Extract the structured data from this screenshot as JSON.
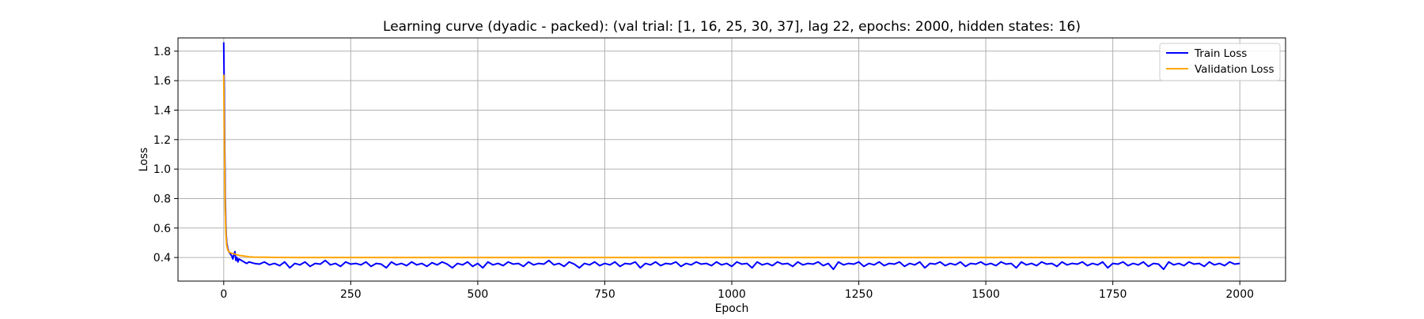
{
  "chart_data": {
    "type": "line",
    "title": "Learning curve (dyadic - packed): (val trial: [1, 16, 25, 30, 37], lag 22, epochs: 2000, hidden states: 16)",
    "xlabel": "Epoch",
    "ylabel": "Loss",
    "xlim": [
      -90,
      2090
    ],
    "ylim": [
      0.24,
      1.89
    ],
    "xticks": [
      0,
      250,
      500,
      750,
      1000,
      1250,
      1500,
      1750,
      2000
    ],
    "yticks": [
      0.4,
      0.6,
      0.8,
      1.0,
      1.2,
      1.4,
      1.6,
      1.8
    ],
    "xtick_labels": [
      "0",
      "250",
      "500",
      "750",
      "1000",
      "1250",
      "1500",
      "1750",
      "2000"
    ],
    "ytick_labels": [
      "0.4",
      "0.6",
      "0.8",
      "1.0",
      "1.2",
      "1.4",
      "1.6",
      "1.8"
    ],
    "grid": true,
    "legend_position": "top-right",
    "series": [
      {
        "name": "Train Loss",
        "color": "#0000ff",
        "x": [
          0,
          1,
          2,
          3,
          4,
          5,
          6,
          8,
          10,
          12,
          14,
          16,
          18,
          20,
          22,
          24,
          26,
          28,
          30,
          35,
          40,
          45,
          50,
          60,
          70,
          80,
          90,
          100,
          110,
          120,
          130,
          140,
          150,
          160,
          170,
          180,
          190,
          200,
          210,
          220,
          230,
          240,
          250,
          260,
          270,
          280,
          290,
          300,
          310,
          320,
          330,
          340,
          350,
          360,
          370,
          380,
          390,
          400,
          410,
          420,
          430,
          440,
          450,
          460,
          470,
          480,
          490,
          500,
          510,
          520,
          530,
          540,
          550,
          560,
          570,
          580,
          590,
          600,
          610,
          620,
          630,
          640,
          650,
          660,
          670,
          680,
          690,
          700,
          710,
          720,
          730,
          740,
          750,
          760,
          770,
          780,
          790,
          800,
          810,
          820,
          830,
          840,
          850,
          860,
          870,
          880,
          890,
          900,
          910,
          920,
          930,
          940,
          950,
          960,
          970,
          980,
          990,
          1000,
          1010,
          1020,
          1030,
          1040,
          1050,
          1060,
          1070,
          1080,
          1090,
          1100,
          1110,
          1120,
          1130,
          1140,
          1150,
          1160,
          1170,
          1180,
          1190,
          1200,
          1210,
          1220,
          1230,
          1240,
          1250,
          1260,
          1270,
          1280,
          1290,
          1300,
          1310,
          1320,
          1330,
          1340,
          1350,
          1360,
          1370,
          1380,
          1390,
          1400,
          1410,
          1420,
          1430,
          1440,
          1450,
          1460,
          1470,
          1480,
          1490,
          1500,
          1510,
          1520,
          1530,
          1540,
          1550,
          1560,
          1570,
          1580,
          1590,
          1600,
          1610,
          1620,
          1630,
          1640,
          1650,
          1660,
          1670,
          1680,
          1690,
          1700,
          1710,
          1720,
          1730,
          1740,
          1750,
          1760,
          1770,
          1780,
          1790,
          1800,
          1810,
          1820,
          1830,
          1840,
          1850,
          1860,
          1870,
          1880,
          1890,
          1900,
          1910,
          1920,
          1930,
          1940,
          1950,
          1960,
          1970,
          1980,
          1990,
          2000
        ],
        "y": [
          1.86,
          1.55,
          1.12,
          0.82,
          0.65,
          0.55,
          0.5,
          0.46,
          0.44,
          0.43,
          0.42,
          0.41,
          0.39,
          0.42,
          0.44,
          0.38,
          0.4,
          0.37,
          0.39,
          0.38,
          0.37,
          0.36,
          0.37,
          0.36,
          0.355,
          0.37,
          0.35,
          0.36,
          0.345,
          0.37,
          0.33,
          0.36,
          0.35,
          0.37,
          0.34,
          0.36,
          0.355,
          0.38,
          0.35,
          0.36,
          0.34,
          0.37,
          0.355,
          0.36,
          0.35,
          0.37,
          0.34,
          0.36,
          0.355,
          0.33,
          0.37,
          0.35,
          0.36,
          0.345,
          0.37,
          0.35,
          0.36,
          0.34,
          0.365,
          0.35,
          0.37,
          0.355,
          0.33,
          0.36,
          0.35,
          0.37,
          0.34,
          0.36,
          0.33,
          0.37,
          0.35,
          0.36,
          0.345,
          0.37,
          0.355,
          0.36,
          0.34,
          0.37,
          0.35,
          0.36,
          0.355,
          0.38,
          0.35,
          0.36,
          0.34,
          0.37,
          0.355,
          0.33,
          0.36,
          0.35,
          0.37,
          0.345,
          0.36,
          0.35,
          0.37,
          0.34,
          0.36,
          0.355,
          0.37,
          0.33,
          0.36,
          0.35,
          0.37,
          0.345,
          0.36,
          0.355,
          0.37,
          0.34,
          0.36,
          0.35,
          0.37,
          0.355,
          0.36,
          0.345,
          0.37,
          0.35,
          0.36,
          0.34,
          0.37,
          0.355,
          0.36,
          0.33,
          0.37,
          0.35,
          0.36,
          0.345,
          0.37,
          0.355,
          0.36,
          0.34,
          0.37,
          0.35,
          0.36,
          0.355,
          0.37,
          0.345,
          0.36,
          0.32,
          0.37,
          0.35,
          0.36,
          0.355,
          0.37,
          0.34,
          0.36,
          0.35,
          0.37,
          0.345,
          0.36,
          0.355,
          0.37,
          0.34,
          0.36,
          0.35,
          0.37,
          0.33,
          0.36,
          0.355,
          0.37,
          0.345,
          0.36,
          0.35,
          0.37,
          0.34,
          0.36,
          0.355,
          0.37,
          0.35,
          0.36,
          0.345,
          0.37,
          0.355,
          0.36,
          0.33,
          0.37,
          0.35,
          0.36,
          0.345,
          0.37,
          0.355,
          0.36,
          0.34,
          0.37,
          0.35,
          0.36,
          0.355,
          0.37,
          0.345,
          0.36,
          0.35,
          0.37,
          0.33,
          0.36,
          0.355,
          0.37,
          0.345,
          0.36,
          0.35,
          0.37,
          0.34,
          0.36,
          0.355,
          0.32,
          0.37,
          0.35,
          0.36,
          0.345,
          0.37,
          0.355,
          0.36,
          0.34,
          0.37,
          0.35,
          0.36,
          0.345,
          0.37,
          0.355,
          0.36
        ]
      },
      {
        "name": "Validation Loss",
        "color": "#ffa500",
        "x": [
          0,
          1,
          2,
          3,
          4,
          5,
          6,
          8,
          10,
          12,
          15,
          20,
          25,
          30,
          40,
          50,
          60,
          80,
          100,
          150,
          200,
          300,
          400,
          500,
          600,
          700,
          800,
          900,
          1000,
          1100,
          1200,
          1300,
          1400,
          1500,
          1600,
          1700,
          1800,
          1900,
          2000
        ],
        "y": [
          1.64,
          1.3,
          0.95,
          0.72,
          0.6,
          0.52,
          0.48,
          0.45,
          0.44,
          0.435,
          0.43,
          0.425,
          0.42,
          0.415,
          0.41,
          0.405,
          0.403,
          0.402,
          0.401,
          0.4,
          0.4,
          0.4,
          0.4,
          0.4,
          0.4,
          0.4,
          0.4,
          0.4,
          0.4,
          0.4,
          0.4,
          0.4,
          0.4,
          0.4,
          0.4,
          0.4,
          0.4,
          0.4,
          0.4
        ]
      }
    ]
  }
}
